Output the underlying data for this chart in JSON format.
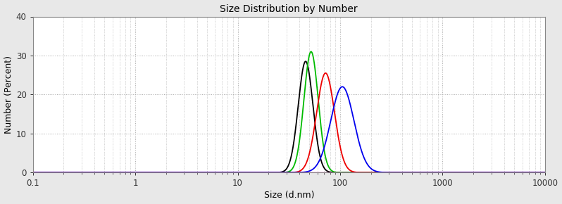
{
  "title": "Size Distribution by Number",
  "xlabel": "Size (d.nm)",
  "ylabel": "Number (Percent)",
  "xlim_log": [
    0.1,
    10000
  ],
  "ylim": [
    0,
    40
  ],
  "yticks": [
    0,
    10,
    20,
    30,
    40
  ],
  "background_color": "#e8e8e8",
  "plot_bg_color": "#ffffff",
  "curves": [
    {
      "color": "#000000",
      "peak": 46.0,
      "sigma_log": 0.165,
      "height": 28.5
    },
    {
      "color": "#00bb00",
      "peak": 52.0,
      "sigma_log": 0.16,
      "height": 31.0
    },
    {
      "color": "#ee0000",
      "peak": 72.0,
      "sigma_log": 0.2,
      "height": 25.5
    },
    {
      "color": "#0000ee",
      "peak": 105.0,
      "sigma_log": 0.26,
      "height": 22.0
    }
  ],
  "baseline_color": "#ff00aa",
  "baseline_linewidth": 1.0,
  "curve_linewidth": 1.3,
  "grid_color": "#aaaaaa",
  "grid_linestyle": ":",
  "grid_linewidth": 0.7,
  "tick_color": "#333333",
  "title_fontsize": 10,
  "axis_label_fontsize": 9,
  "tick_fontsize": 8.5
}
